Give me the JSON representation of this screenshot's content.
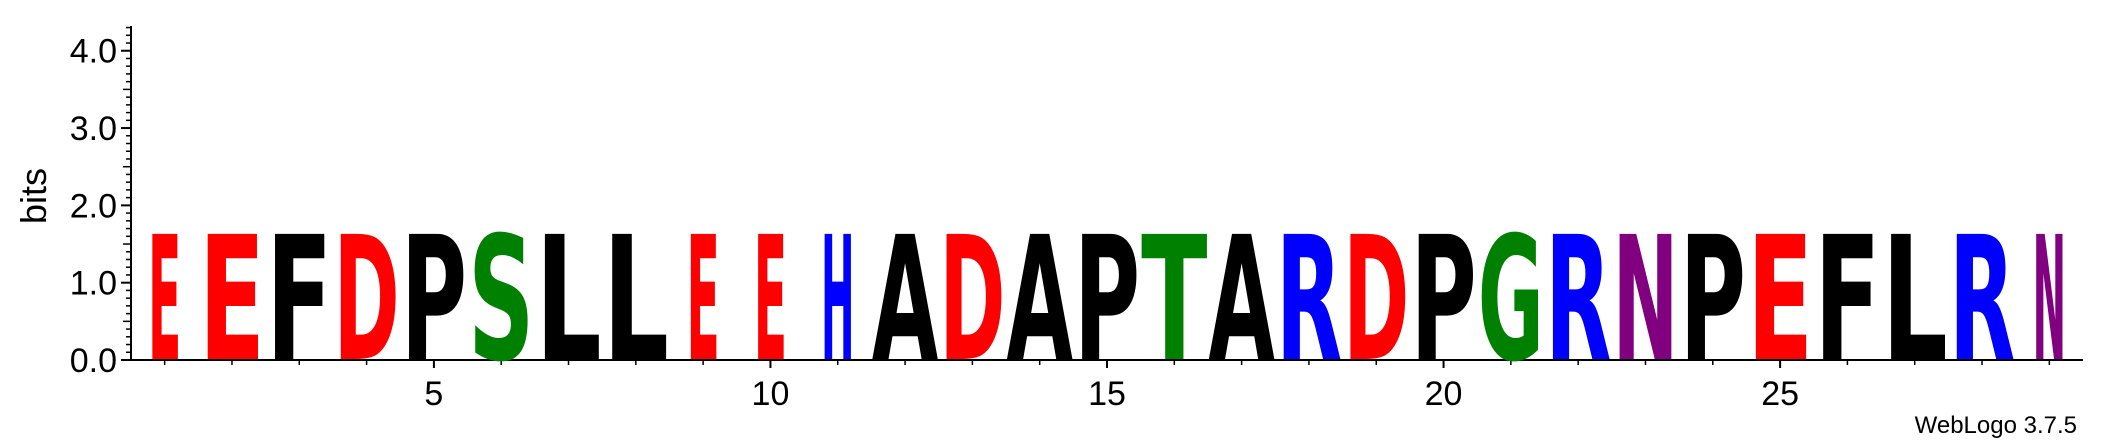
{
  "chart_data": {
    "type": "sequence-logo",
    "title": "",
    "xlabel": "",
    "ylabel": "bits",
    "ylim": [
      0,
      4.32
    ],
    "y_ticks": [
      "0.0",
      "1.0",
      "2.0",
      "3.0",
      "4.0"
    ],
    "y_tick_values": [
      0,
      1,
      2,
      3,
      4
    ],
    "x_ticks": [
      "5",
      "10",
      "15",
      "20",
      "25"
    ],
    "x_tick_values": [
      5,
      10,
      15,
      20,
      25
    ],
    "x_range": [
      0.5,
      29.5
    ],
    "credit": "WebLogo 3.7.5",
    "colors": {
      "E": "#ff0000",
      "D": "#ff0000",
      "F": "#000000",
      "P": "#000000",
      "L": "#000000",
      "A": "#000000",
      "S": "#008000",
      "T": "#008000",
      "G": "#008000",
      "H": "#0000ff",
      "R": "#0000ff",
      "N": "#800080"
    },
    "positions": [
      {
        "pos": 1,
        "letter": "E",
        "bits": 1.62,
        "width": 0.5
      },
      {
        "pos": 2,
        "letter": "E",
        "bits": 1.62
      },
      {
        "pos": 3,
        "letter": "F",
        "bits": 1.62
      },
      {
        "pos": 4,
        "letter": "D",
        "bits": 1.62
      },
      {
        "pos": 5,
        "letter": "P",
        "bits": 1.62
      },
      {
        "pos": 6,
        "letter": "S",
        "bits": 1.62
      },
      {
        "pos": 7,
        "letter": "L",
        "bits": 1.62
      },
      {
        "pos": 8,
        "letter": "L",
        "bits": 1.62
      },
      {
        "pos": 9,
        "letter": "E",
        "bits": 1.62,
        "width": 0.5
      },
      {
        "pos": 10,
        "letter": "E",
        "bits": 1.62,
        "width": 0.5
      },
      {
        "pos": 11,
        "letter": "H",
        "bits": 1.62,
        "width": 0.5
      },
      {
        "pos": 12,
        "letter": "A",
        "bits": 1.62
      },
      {
        "pos": 13,
        "letter": "D",
        "bits": 1.62
      },
      {
        "pos": 14,
        "letter": "A",
        "bits": 1.62
      },
      {
        "pos": 15,
        "letter": "P",
        "bits": 1.62
      },
      {
        "pos": 16,
        "letter": "T",
        "bits": 1.62
      },
      {
        "pos": 17,
        "letter": "A",
        "bits": 1.62
      },
      {
        "pos": 18,
        "letter": "R",
        "bits": 1.62
      },
      {
        "pos": 19,
        "letter": "D",
        "bits": 1.62
      },
      {
        "pos": 20,
        "letter": "P",
        "bits": 1.62
      },
      {
        "pos": 21,
        "letter": "G",
        "bits": 1.62
      },
      {
        "pos": 22,
        "letter": "R",
        "bits": 1.62
      },
      {
        "pos": 23,
        "letter": "N",
        "bits": 1.62
      },
      {
        "pos": 24,
        "letter": "P",
        "bits": 1.62
      },
      {
        "pos": 25,
        "letter": "E",
        "bits": 1.62
      },
      {
        "pos": 26,
        "letter": "F",
        "bits": 1.62
      },
      {
        "pos": 27,
        "letter": "L",
        "bits": 1.62
      },
      {
        "pos": 28,
        "letter": "R",
        "bits": 1.62
      },
      {
        "pos": 29,
        "letter": "N",
        "bits": 1.62,
        "width": 0.5
      }
    ],
    "grid": false,
    "legend": "none"
  }
}
